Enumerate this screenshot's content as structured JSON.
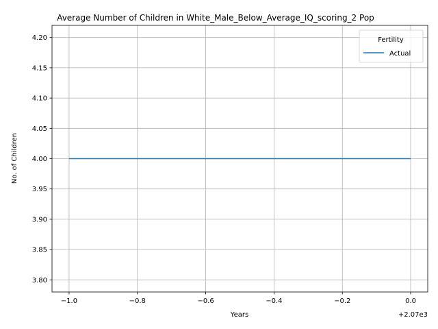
{
  "chart_data": {
    "type": "line",
    "title": "Average Number of Children in White_Male_Below_Average_IQ_scoring_2 Pop",
    "xlabel": "Years",
    "ylabel": "No. of Children",
    "x_offset_label": "+2.07e3",
    "xlim": [
      -1.05,
      0.05
    ],
    "ylim": [
      3.78,
      4.22
    ],
    "x_ticks": [
      -1.0,
      -0.8,
      -0.6,
      -0.4,
      -0.2,
      0.0
    ],
    "x_tick_labels": [
      "−1.0",
      "−0.8",
      "−0.6",
      "−0.4",
      "−0.2",
      "0.0"
    ],
    "y_ticks": [
      3.8,
      3.85,
      3.9,
      3.95,
      4.0,
      4.05,
      4.1,
      4.15,
      4.2
    ],
    "y_tick_labels": [
      "3.80",
      "3.85",
      "3.90",
      "3.95",
      "4.00",
      "4.05",
      "4.10",
      "4.15",
      "4.20"
    ],
    "grid": true,
    "legend": {
      "title": "Fertility",
      "placement": "top-right"
    },
    "series": [
      {
        "name": "Actual",
        "color": "#1f77b4",
        "x": [
          -1.0,
          0.0
        ],
        "y": [
          4.0,
          4.0
        ]
      }
    ]
  }
}
